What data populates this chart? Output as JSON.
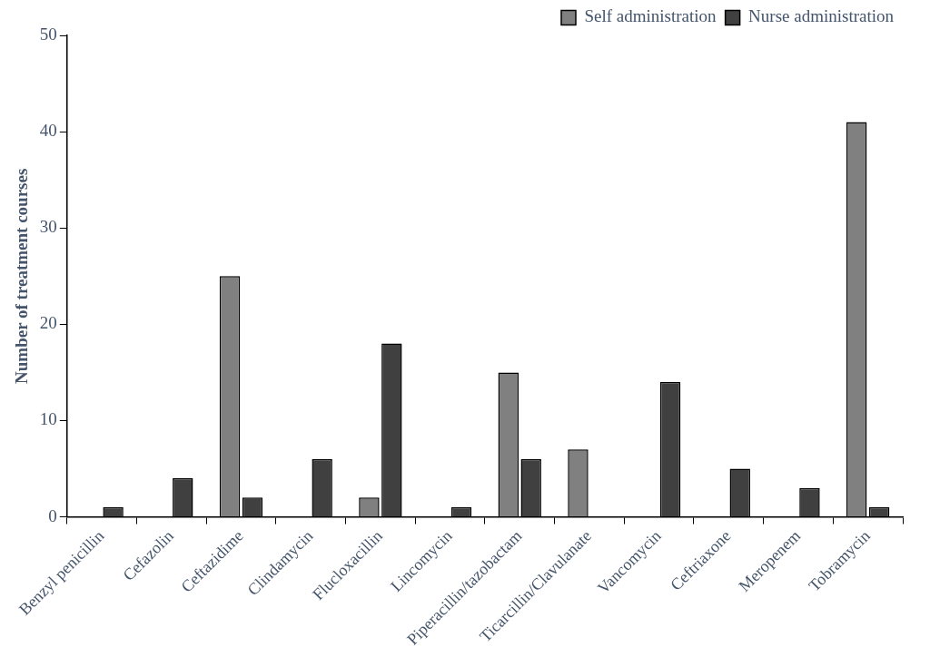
{
  "chart_data": {
    "type": "bar",
    "ylabel": "Number of treatment courses",
    "categories": [
      "Benzyl penicillin",
      "Cefazolin",
      "Ceftazidime",
      "Clindamycin",
      "Flucloxacillin",
      "Lincomycin",
      "Piperacillin/tazobactam",
      "Ticarcillin/Clavulanate",
      "Vancomycin",
      "Ceftriaxone",
      "Meropenem",
      "Tobramycin"
    ],
    "series": [
      {
        "name": "Self administration",
        "color": "#808080",
        "values": [
          0,
          0,
          25,
          0,
          2,
          0,
          15,
          7,
          0,
          0,
          0,
          41
        ]
      },
      {
        "name": "Nurse administration",
        "color": "#404040",
        "values": [
          1,
          4,
          2,
          6,
          18,
          1,
          6,
          0,
          14,
          5,
          3,
          1
        ]
      }
    ],
    "ylim": [
      0,
      50
    ],
    "yticks": [
      0,
      10,
      20,
      30,
      40,
      50
    ],
    "grid": false,
    "legend": "top right"
  }
}
